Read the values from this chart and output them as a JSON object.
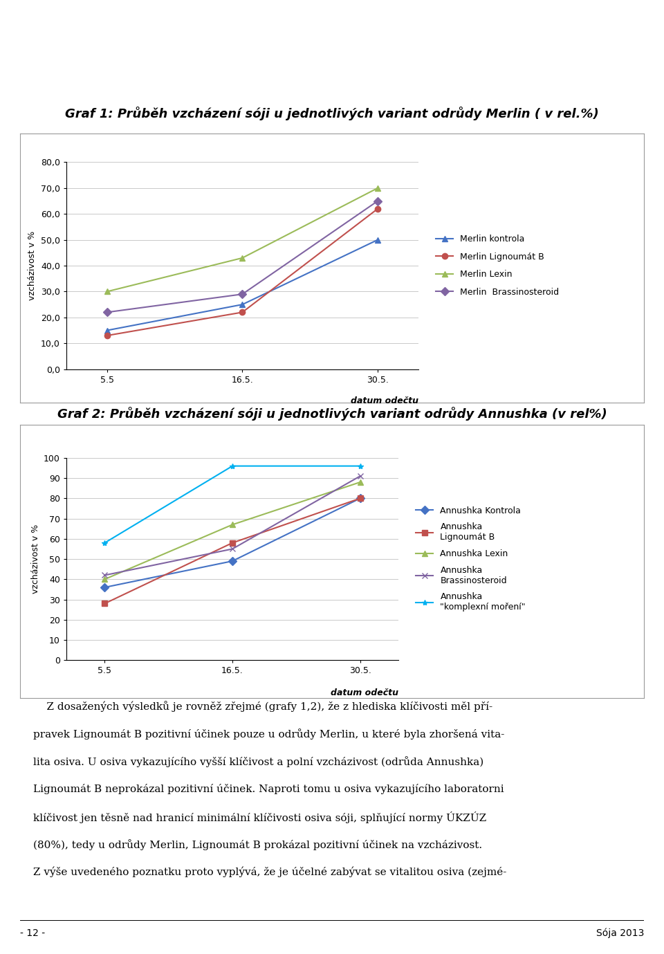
{
  "graph1": {
    "title": "Graf 1: Průběh vzcházení sóji u jednotlivých variant odrůdy Merlin ( v rel.%)",
    "xlabel": "datum odečtu",
    "ylabel": "vzcházivost v %",
    "x_labels": [
      "5.5",
      "16.5.",
      "30.5."
    ],
    "x_values": [
      0,
      1,
      2
    ],
    "ylim": [
      0,
      80
    ],
    "yticks": [
      0,
      10,
      20,
      30,
      40,
      50,
      60,
      70,
      80
    ],
    "ytick_labels": [
      "0,0",
      "10,0",
      "20,0",
      "30,0",
      "40,0",
      "50,0",
      "60,0",
      "70,0",
      "80,0"
    ],
    "series": [
      {
        "label": "Merlin kontrola",
        "values": [
          15,
          25,
          50
        ],
        "color": "#4472C4",
        "marker": "^",
        "linestyle": "-"
      },
      {
        "label": "Merlin Lignoumát B",
        "values": [
          13,
          22,
          62
        ],
        "color": "#C0504D",
        "marker": "o",
        "linestyle": "-"
      },
      {
        "label": "Merlin Lexin",
        "values": [
          30,
          43,
          70
        ],
        "color": "#9BBB59",
        "marker": "^",
        "linestyle": "-"
      },
      {
        "label": "Merlin  Brassinosteroid",
        "values": [
          22,
          29,
          65
        ],
        "color": "#8064A2",
        "marker": "D",
        "linestyle": "-"
      }
    ]
  },
  "graph2": {
    "title": "Graf 2: Průběh vzcházení sóji u jednotlivých variant odrůdy Annushka (v rel%)",
    "xlabel": "datum odečtu",
    "ylabel": "vzcházivost v %",
    "x_labels": [
      "5.5",
      "16.5.",
      "30.5."
    ],
    "x_values": [
      0,
      1,
      2
    ],
    "ylim": [
      0,
      100
    ],
    "yticks": [
      0,
      10,
      20,
      30,
      40,
      50,
      60,
      70,
      80,
      90,
      100
    ],
    "ytick_labels": [
      "0",
      "10",
      "20",
      "30",
      "40",
      "50",
      "60",
      "70",
      "80",
      "90",
      "100"
    ],
    "series": [
      {
        "label": "Annushka Kontrola",
        "values": [
          36,
          49,
          80
        ],
        "color": "#4472C4",
        "marker": "D",
        "linestyle": "-"
      },
      {
        "label": "Annushka\nLignoumát B",
        "values": [
          28,
          58,
          80
        ],
        "color": "#C0504D",
        "marker": "s",
        "linestyle": "-"
      },
      {
        "label": "Annushka Lexin",
        "values": [
          40,
          67,
          88
        ],
        "color": "#9BBB59",
        "marker": "^",
        "linestyle": "-"
      },
      {
        "label": "Annushka\nBrassinosteroid",
        "values": [
          42,
          55,
          91
        ],
        "color": "#8064A2",
        "marker": "x",
        "linestyle": "-"
      },
      {
        "label": "Annushka\n\"komplexní moření\"",
        "values": [
          58,
          96,
          96
        ],
        "color": "#00B0F0",
        "marker": "*",
        "linestyle": "-"
      }
    ]
  },
  "text_lines": [
    "    Z dosažených výsledků je rovněž zřejmé (grafy 1,2), že z hlediska klíčivosti měl pří-",
    "pravek Lignoumát B pozitivní účinek pouze u odrůdy Merlin, u které byla zhoršená vita-",
    "lita osiva. U osiva vykazujícího vyšší klíčivost a polní vzcházivost (odrůda Annushka)",
    "Lignoumát B neprokázal pozitivní účinek. Naproti tomu u osiva vykazujícího laboratorni",
    "klíčivost jen těsně nad hranicí minimální klíčivosti osiva sóji, splňující normy ÚKZÚZ",
    "(80%), tedy u odrůdy Merlin, Lignoumát B prokázal pozitivní účinek na vzcházivost.",
    "Z výše uvedeného poznatku proto vyplývá, že je účelné zabývat se vitalitou osiva (zejmé-"
  ],
  "footer_left": "- 12 -",
  "footer_right": "Sója 2013",
  "background_color": "#FFFFFF",
  "plot_bg_color": "#FFFFFF",
  "grid_color": "#C0C0C0",
  "title_fontsize": 13,
  "axis_fontsize": 9,
  "tick_fontsize": 9,
  "legend_fontsize": 9,
  "text_fontsize": 11
}
